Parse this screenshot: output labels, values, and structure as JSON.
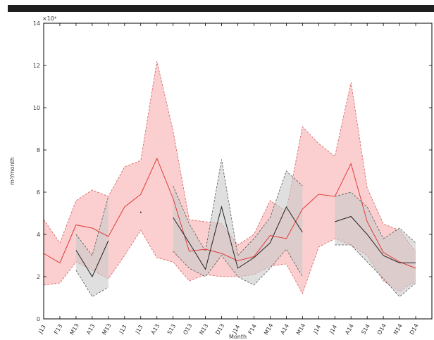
{
  "chart_data": {
    "type": "area",
    "title": "",
    "xlabel": "Month",
    "ylabel": "m³/month",
    "y_exponent_label": "×10⁴",
    "y_scale_factor": 10000,
    "ylim": [
      0,
      140000
    ],
    "y_ticks": [
      0,
      20000,
      40000,
      60000,
      80000,
      100000,
      120000,
      140000
    ],
    "y_tick_labels": [
      "0",
      "2",
      "4",
      "6",
      "8",
      "10",
      "12",
      "14"
    ],
    "grid": false,
    "legend": "none",
    "categories": [
      "J13",
      "F13",
      "M13",
      "A13",
      "M13",
      "J13",
      "J13",
      "A13",
      "S13",
      "O13",
      "N13",
      "D13",
      "J14",
      "F14",
      "M14",
      "A14",
      "M14",
      "J14",
      "J14",
      "A14",
      "S14",
      "O14",
      "N14",
      "D14"
    ],
    "series": [
      {
        "color": "#e23a3a",
        "band_fill": "#f7a8a8",
        "values": [
          31000,
          26500,
          44500,
          43000,
          39000,
          53000,
          59000,
          76000,
          57000,
          32000,
          33000,
          31000,
          27500,
          29500,
          39500,
          38000,
          52000,
          59000,
          58000,
          73500,
          46000,
          31500,
          27000,
          24000
        ],
        "upper": [
          47000,
          36000,
          56000,
          61000,
          58000,
          72000,
          75000,
          122000,
          89000,
          47000,
          46000,
          45000,
          35000,
          40000,
          56000,
          51000,
          91000,
          83000,
          77000,
          112000,
          62000,
          45000,
          42000,
          32000
        ],
        "lower": [
          16000,
          17000,
          27000,
          23000,
          19000,
          30000,
          42000,
          29000,
          27000,
          18000,
          21000,
          20000,
          20000,
          21000,
          25000,
          26000,
          12000,
          34000,
          38000,
          35000,
          30000,
          18000,
          13000,
          18000
        ]
      },
      {
        "color": "#222222",
        "band_fill": "#c9c9c9",
        "values": [
          null,
          null,
          32500,
          20000,
          37000,
          null,
          50500,
          null,
          48000,
          36000,
          23500,
          53000,
          24000,
          29000,
          36000,
          53000,
          41000,
          null,
          46000,
          48500,
          40000,
          30000,
          26500,
          26500
        ],
        "upper": [
          null,
          null,
          40000,
          30000,
          58000,
          null,
          71000,
          null,
          63000,
          45000,
          32000,
          75500,
          30000,
          38000,
          48000,
          70000,
          63000,
          null,
          58000,
          60000,
          53000,
          38000,
          43000,
          36000
        ],
        "lower": [
          null,
          null,
          23000,
          10500,
          15000,
          null,
          30000,
          null,
          32000,
          24000,
          20000,
          30000,
          20000,
          16000,
          24000,
          33000,
          20000,
          null,
          35000,
          35000,
          27000,
          19000,
          10500,
          17000
        ]
      }
    ]
  }
}
